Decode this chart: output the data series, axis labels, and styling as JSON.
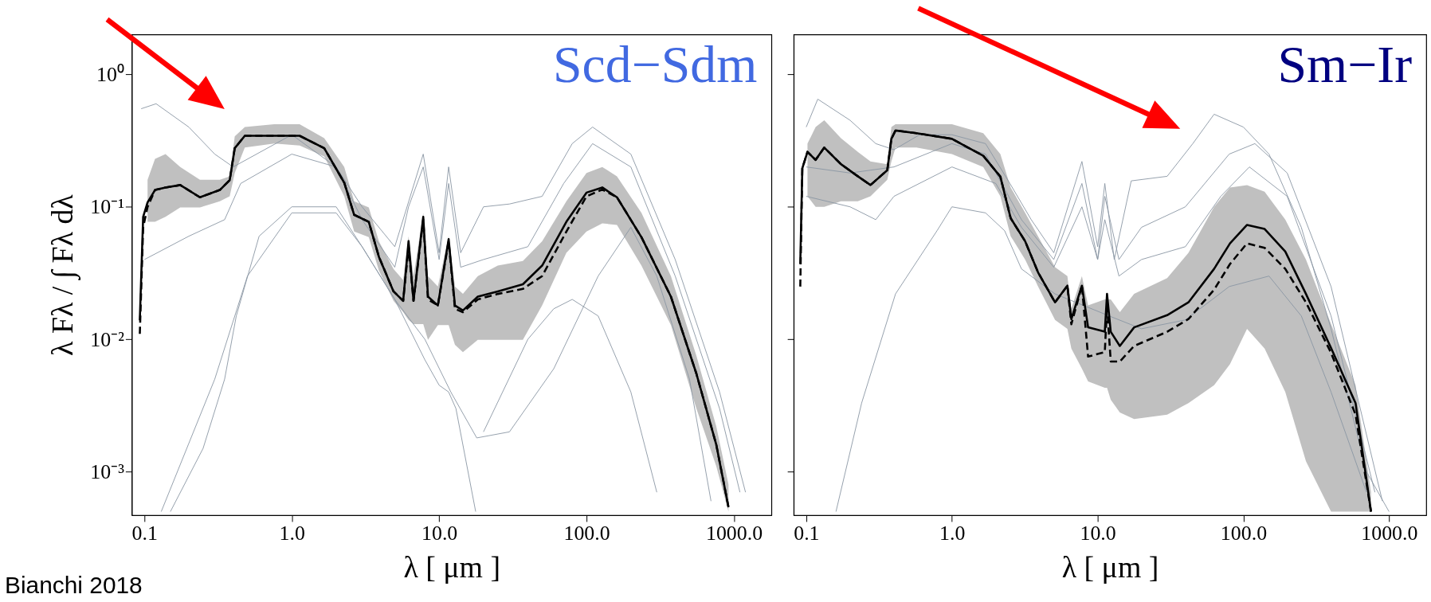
{
  "chart_data": [
    {
      "type": "line",
      "title": "Scd−Sdm",
      "xlabel": "λ [ μm ]",
      "ylabel": "λ Fλ  / ∫ Fλ dλ",
      "log": "xy",
      "grid": false,
      "marker": "none",
      "xlim": [
        0.082,
        1800
      ],
      "ylim": [
        0.00047,
        2.0
      ],
      "xticks": [
        {
          "value": 0.1,
          "label": "0.1"
        },
        {
          "value": 1,
          "label": "1.0"
        },
        {
          "value": 10,
          "label": "10.0"
        },
        {
          "value": 100,
          "label": "100.0"
        },
        {
          "value": 1000,
          "label": "1000.0"
        }
      ],
      "yticks": [
        {
          "value": 1,
          "label": "10⁰"
        },
        {
          "value": 0.1,
          "label": "10⁻¹"
        },
        {
          "value": 0.01,
          "label": "10⁻²"
        },
        {
          "value": 0.001,
          "label": "10⁻³"
        }
      ],
      "annotations": [
        "Bianchi 2018"
      ],
      "series": [
        {
          "color": "#8a96a3",
          "line_style": "solid",
          "x": [
            0.095,
            0.12,
            0.2,
            0.3,
            0.4,
            1.0,
            2,
            3,
            5,
            7.8,
            10,
            11.6,
            14,
            20,
            30,
            50,
            80,
            110,
            200,
            400,
            800,
            1200
          ],
          "values": [
            0.55,
            0.6,
            0.4,
            0.25,
            0.2,
            0.35,
            0.2,
            0.1,
            0.05,
            0.25,
            0.045,
            0.2,
            0.045,
            0.1,
            0.105,
            0.12,
            0.3,
            0.4,
            0.25,
            0.04,
            0.004,
            0.0007
          ]
        },
        {
          "color": "#8a96a3",
          "line_style": "solid",
          "x": [
            0.15,
            0.25,
            0.35,
            0.42,
            0.6,
            1.0,
            2,
            3,
            5,
            8,
            10,
            11.6,
            13,
            17.7
          ],
          "values": [
            0.0005,
            0.0015,
            0.005,
            0.015,
            0.06,
            0.1,
            0.1,
            0.05,
            0.02,
            0.007,
            0.0045,
            0.004,
            0.003,
            0.0005
          ]
        },
        {
          "color": "#8a96a3",
          "line_style": "solid",
          "x": [
            0.13,
            0.3,
            0.5,
            1,
            2,
            3,
            5,
            8,
            12,
            18,
            30,
            60,
            120,
            200,
            300,
            500,
            700
          ],
          "values": [
            0.0005,
            0.005,
            0.03,
            0.09,
            0.09,
            0.05,
            0.02,
            0.01,
            0.004,
            0.0018,
            0.002,
            0.006,
            0.03,
            0.07,
            0.03,
            0.005,
            0.0006
          ]
        },
        {
          "color": "#8a96a3",
          "line_style": "solid",
          "x": [
            20,
            40,
            60,
            80,
            120,
            200,
            300
          ],
          "values": [
            0.002,
            0.01,
            0.017,
            0.02,
            0.015,
            0.004,
            0.0007
          ]
        },
        {
          "color": "#8a96a3",
          "line_style": "solid",
          "x": [
            0.1,
            0.2,
            0.35,
            0.45,
            1,
            2,
            3,
            5,
            6.2,
            7.8,
            10,
            11.6,
            14,
            20,
            40,
            70,
            110,
            200,
            400,
            800,
            1100
          ],
          "values": [
            0.04,
            0.06,
            0.08,
            0.15,
            0.25,
            0.2,
            0.08,
            0.035,
            0.1,
            0.2,
            0.04,
            0.15,
            0.035,
            0.04,
            0.05,
            0.15,
            0.3,
            0.2,
            0.03,
            0.003,
            0.0007
          ]
        },
        {
          "color": "#000000",
          "line_style": "dashed",
          "x": [
            0.093,
            0.098,
            0.105,
            0.118,
            0.139,
            0.175,
            0.238,
            0.325,
            0.379,
            0.41,
            0.48,
            0.76,
            1.13,
            1.66,
            2.27,
            2.65,
            3.33,
            3.9,
            4.9,
            5.7,
            6.2,
            6.7,
            7.8,
            8.4,
            9.8,
            11.6,
            12.8,
            14.5,
            18.3,
            25,
            37,
            50,
            73,
            100,
            128,
            161,
            236,
            374,
            557,
            760,
            920
          ],
          "values": [
            0.011,
            0.07,
            0.1,
            0.134,
            0.14,
            0.146,
            0.118,
            0.134,
            0.159,
            0.277,
            0.344,
            0.344,
            0.344,
            0.277,
            0.152,
            0.087,
            0.077,
            0.042,
            0.023,
            0.0195,
            0.05,
            0.0195,
            0.08,
            0.02,
            0.018,
            0.055,
            0.017,
            0.016,
            0.02,
            0.022,
            0.024,
            0.03,
            0.065,
            0.12,
            0.135,
            0.118,
            0.059,
            0.021,
            0.0055,
            0.0016,
            0.00054
          ]
        },
        {
          "color": "#000000",
          "line_style": "solid",
          "x": [
            0.093,
            0.098,
            0.105,
            0.118,
            0.139,
            0.175,
            0.238,
            0.325,
            0.379,
            0.41,
            0.48,
            0.76,
            1.13,
            1.66,
            2.27,
            2.65,
            3.33,
            3.9,
            4.9,
            5.7,
            6.2,
            6.7,
            7.8,
            8.4,
            9.8,
            11.6,
            12.8,
            14.5,
            18.3,
            25,
            37,
            50,
            73,
            100,
            128,
            161,
            236,
            374,
            557,
            760,
            920
          ],
          "values": [
            0.0139,
            0.084,
            0.108,
            0.134,
            0.14,
            0.146,
            0.118,
            0.134,
            0.159,
            0.277,
            0.344,
            0.344,
            0.344,
            0.277,
            0.152,
            0.087,
            0.077,
            0.042,
            0.023,
            0.0195,
            0.055,
            0.0195,
            0.084,
            0.021,
            0.018,
            0.057,
            0.018,
            0.0165,
            0.021,
            0.023,
            0.026,
            0.036,
            0.077,
            0.128,
            0.14,
            0.118,
            0.059,
            0.021,
            0.0055,
            0.0016,
            0.00054
          ],
          "lower": [
            null,
            null,
            0.077,
            0.077,
            0.084,
            0.099,
            0.099,
            0.11,
            0.12,
            0.18,
            0.28,
            0.3,
            0.29,
            0.24,
            0.12,
            0.065,
            0.059,
            0.033,
            0.0195,
            0.016,
            0.014,
            0.013,
            0.013,
            0.0099,
            0.0128,
            0.0128,
            0.0091,
            0.008,
            0.0099,
            0.0099,
            0.0099,
            0.018,
            0.045,
            0.065,
            0.075,
            0.073,
            0.036,
            0.0128,
            0.003,
            0.0011,
            0.0005
          ],
          "upper": [
            null,
            null,
            0.16,
            0.23,
            0.25,
            0.2,
            0.16,
            0.16,
            0.17,
            0.34,
            0.4,
            0.42,
            0.42,
            0.33,
            0.2,
            0.11,
            0.099,
            0.055,
            0.034,
            0.028,
            0.06,
            0.03,
            0.09,
            0.03,
            0.025,
            0.06,
            0.025,
            0.022,
            0.03,
            0.036,
            0.039,
            0.055,
            0.11,
            0.18,
            0.2,
            0.17,
            0.09,
            0.03,
            0.0075,
            0.0022,
            0.0008
          ]
        }
      ]
    },
    {
      "type": "line",
      "title": "Sm−Ir",
      "xlabel": "λ [ μm ]",
      "log": "xy",
      "grid": false,
      "marker": "none",
      "tick_labels": "x",
      "xlim": [
        0.082,
        1800
      ],
      "ylim": [
        0.00047,
        2.0
      ],
      "xticks": [
        {
          "value": 0.1,
          "label": "0.1"
        },
        {
          "value": 1,
          "label": "1.0"
        },
        {
          "value": 10,
          "label": "10.0"
        },
        {
          "value": 100,
          "label": "100.0"
        },
        {
          "value": 1000,
          "label": "1000.0"
        }
      ],
      "yticks": [
        {
          "value": 1,
          "label": null
        },
        {
          "value": 0.1,
          "label": null
        },
        {
          "value": 0.01,
          "label": null
        },
        {
          "value": 0.001,
          "label": null
        }
      ],
      "series": [
        {
          "color": "#8a96a3",
          "line_style": "solid",
          "x": [
            0.1,
            0.12,
            0.2,
            0.3,
            0.4,
            0.6,
            1,
            1.7,
            2.5,
            3.5,
            5,
            7.8,
            10,
            11.2,
            13,
            17,
            30,
            45,
            63,
            100,
            150,
            250,
            400,
            700,
            1000
          ],
          "values": [
            0.4,
            0.65,
            0.45,
            0.3,
            0.27,
            0.35,
            0.35,
            0.3,
            0.15,
            0.08,
            0.045,
            0.22,
            0.05,
            0.15,
            0.04,
            0.157,
            0.17,
            0.3,
            0.5,
            0.4,
            0.25,
            0.07,
            0.012,
            0.001,
            0.0005
          ]
        },
        {
          "color": "#8a96a3",
          "line_style": "solid",
          "x": [
            0.16,
            0.24,
            0.41,
            0.79,
            1,
            1.7,
            2.3,
            3,
            5.1,
            8,
            12,
            20,
            40,
            80,
            150,
            250,
            400,
            700
          ],
          "values": [
            0.0005,
            0.0033,
            0.022,
            0.066,
            0.1,
            0.09,
            0.066,
            0.034,
            0.022,
            0.018,
            0.015,
            0.012,
            0.014,
            0.025,
            0.03,
            0.015,
            0.004,
            0.0007
          ]
        },
        {
          "color": "#8a96a3",
          "line_style": "solid",
          "x": [
            0.1,
            0.2,
            0.3,
            0.4,
            1,
            2,
            3,
            5,
            7.8,
            10,
            11.2,
            14,
            20,
            40,
            70,
            110,
            200,
            400,
            800
          ],
          "values": [
            0.12,
            0.1,
            0.08,
            0.12,
            0.2,
            0.15,
            0.07,
            0.035,
            0.1,
            0.04,
            0.08,
            0.03,
            0.04,
            0.05,
            0.12,
            0.2,
            0.12,
            0.015,
            0.0007
          ]
        },
        {
          "color": "#8a96a3",
          "line_style": "solid",
          "x": [
            0.1,
            0.2,
            0.4,
            1,
            1.7,
            3,
            5,
            7.8,
            10,
            11.2,
            14,
            20,
            40,
            80,
            120,
            200,
            400,
            900
          ],
          "values": [
            0.2,
            0.18,
            0.2,
            0.3,
            0.25,
            0.08,
            0.04,
            0.15,
            0.04,
            0.12,
            0.04,
            0.07,
            0.1,
            0.25,
            0.3,
            0.18,
            0.025,
            0.0006
          ]
        },
        {
          "color": "#000000",
          "line_style": "dashed",
          "x": [
            0.091,
            0.094,
            0.102,
            0.116,
            0.133,
            0.173,
            0.226,
            0.276,
            0.36,
            0.384,
            0.41,
            0.57,
            1.0,
            1.64,
            2.15,
            2.53,
            3.18,
            3.9,
            5.1,
            6.2,
            6.6,
            7.8,
            8.6,
            11.2,
            11.6,
            12.3,
            14.2,
            17.8,
            30,
            42,
            63,
            81,
            106,
            140,
            194,
            269,
            400,
            589,
            752
          ],
          "values": [
            0.025,
            0.195,
            0.26,
            0.226,
            0.28,
            0.21,
            0.17,
            0.146,
            0.189,
            0.326,
            0.377,
            0.36,
            0.326,
            0.243,
            0.169,
            0.082,
            0.055,
            0.032,
            0.019,
            0.0254,
            0.013,
            0.0254,
            0.0074,
            0.008,
            0.018,
            0.0068,
            0.0068,
            0.0089,
            0.0114,
            0.0142,
            0.0237,
            0.037,
            0.053,
            0.049,
            0.034,
            0.019,
            0.0079,
            0.0027,
            0.0005
          ]
        },
        {
          "color": "#000000",
          "line_style": "solid",
          "x": [
            0.091,
            0.094,
            0.102,
            0.116,
            0.133,
            0.173,
            0.226,
            0.276,
            0.36,
            0.384,
            0.41,
            0.57,
            1.0,
            1.64,
            2.15,
            2.53,
            3.18,
            3.9,
            5.1,
            6.2,
            6.6,
            7.8,
            8.6,
            11.2,
            11.6,
            12.3,
            14.2,
            17.8,
            30,
            42,
            63,
            81,
            106,
            140,
            194,
            269,
            400,
            589,
            752
          ],
          "values": [
            0.037,
            0.195,
            0.26,
            0.226,
            0.28,
            0.21,
            0.17,
            0.146,
            0.189,
            0.326,
            0.377,
            0.36,
            0.326,
            0.243,
            0.169,
            0.082,
            0.055,
            0.032,
            0.019,
            0.0254,
            0.0142,
            0.0254,
            0.0123,
            0.0114,
            0.022,
            0.0114,
            0.0089,
            0.0123,
            0.0152,
            0.019,
            0.034,
            0.053,
            0.073,
            0.068,
            0.046,
            0.022,
            0.0086,
            0.0033,
            0.0005
          ],
          "lower": [
            null,
            null,
            0.12,
            0.1,
            0.1,
            0.11,
            0.11,
            0.12,
            0.16,
            0.22,
            0.28,
            0.28,
            0.25,
            0.2,
            0.12,
            0.06,
            0.04,
            0.025,
            0.014,
            0.012,
            0.0085,
            0.006,
            0.0048,
            0.0043,
            0.0043,
            0.0035,
            0.0028,
            0.0025,
            0.0027,
            0.0033,
            0.0045,
            0.0065,
            0.012,
            0.0085,
            0.004,
            0.0012,
            0.0005,
            0.0005,
            0.0005
          ],
          "upper": [
            null,
            null,
            0.3,
            0.4,
            0.45,
            0.33,
            0.26,
            0.22,
            0.21,
            0.4,
            0.42,
            0.42,
            0.42,
            0.36,
            0.25,
            0.14,
            0.09,
            0.06,
            0.035,
            0.03,
            0.017,
            0.03,
            0.018,
            0.02,
            0.02,
            0.02,
            0.016,
            0.022,
            0.029,
            0.045,
            0.1,
            0.14,
            0.146,
            0.13,
            0.08,
            0.04,
            0.013,
            0.0045,
            0.0007
          ]
        }
      ]
    }
  ]
}
